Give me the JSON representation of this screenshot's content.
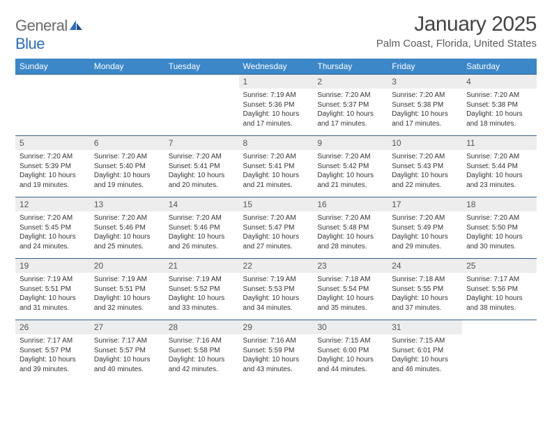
{
  "logo": {
    "text1": "General",
    "text2": "Blue"
  },
  "title": "January 2025",
  "location": "Palm Coast, Florida, United States",
  "colors": {
    "header_bg": "#3b87c8",
    "header_text": "#ffffff",
    "row_border": "#2f5f8a",
    "daynum_bg": "#ededed",
    "logo_gray": "#6a6a6a",
    "logo_blue": "#2a6cbf"
  },
  "weekdays": [
    "Sunday",
    "Monday",
    "Tuesday",
    "Wednesday",
    "Thursday",
    "Friday",
    "Saturday"
  ],
  "weeks": [
    [
      null,
      null,
      null,
      {
        "n": "1",
        "sr": "7:19 AM",
        "ss": "5:36 PM",
        "dl": "10 hours and 17 minutes."
      },
      {
        "n": "2",
        "sr": "7:20 AM",
        "ss": "5:37 PM",
        "dl": "10 hours and 17 minutes."
      },
      {
        "n": "3",
        "sr": "7:20 AM",
        "ss": "5:38 PM",
        "dl": "10 hours and 17 minutes."
      },
      {
        "n": "4",
        "sr": "7:20 AM",
        "ss": "5:38 PM",
        "dl": "10 hours and 18 minutes."
      }
    ],
    [
      {
        "n": "5",
        "sr": "7:20 AM",
        "ss": "5:39 PM",
        "dl": "10 hours and 19 minutes."
      },
      {
        "n": "6",
        "sr": "7:20 AM",
        "ss": "5:40 PM",
        "dl": "10 hours and 19 minutes."
      },
      {
        "n": "7",
        "sr": "7:20 AM",
        "ss": "5:41 PM",
        "dl": "10 hours and 20 minutes."
      },
      {
        "n": "8",
        "sr": "7:20 AM",
        "ss": "5:41 PM",
        "dl": "10 hours and 21 minutes."
      },
      {
        "n": "9",
        "sr": "7:20 AM",
        "ss": "5:42 PM",
        "dl": "10 hours and 21 minutes."
      },
      {
        "n": "10",
        "sr": "7:20 AM",
        "ss": "5:43 PM",
        "dl": "10 hours and 22 minutes."
      },
      {
        "n": "11",
        "sr": "7:20 AM",
        "ss": "5:44 PM",
        "dl": "10 hours and 23 minutes."
      }
    ],
    [
      {
        "n": "12",
        "sr": "7:20 AM",
        "ss": "5:45 PM",
        "dl": "10 hours and 24 minutes."
      },
      {
        "n": "13",
        "sr": "7:20 AM",
        "ss": "5:46 PM",
        "dl": "10 hours and 25 minutes."
      },
      {
        "n": "14",
        "sr": "7:20 AM",
        "ss": "5:46 PM",
        "dl": "10 hours and 26 minutes."
      },
      {
        "n": "15",
        "sr": "7:20 AM",
        "ss": "5:47 PM",
        "dl": "10 hours and 27 minutes."
      },
      {
        "n": "16",
        "sr": "7:20 AM",
        "ss": "5:48 PM",
        "dl": "10 hours and 28 minutes."
      },
      {
        "n": "17",
        "sr": "7:20 AM",
        "ss": "5:49 PM",
        "dl": "10 hours and 29 minutes."
      },
      {
        "n": "18",
        "sr": "7:20 AM",
        "ss": "5:50 PM",
        "dl": "10 hours and 30 minutes."
      }
    ],
    [
      {
        "n": "19",
        "sr": "7:19 AM",
        "ss": "5:51 PM",
        "dl": "10 hours and 31 minutes."
      },
      {
        "n": "20",
        "sr": "7:19 AM",
        "ss": "5:51 PM",
        "dl": "10 hours and 32 minutes."
      },
      {
        "n": "21",
        "sr": "7:19 AM",
        "ss": "5:52 PM",
        "dl": "10 hours and 33 minutes."
      },
      {
        "n": "22",
        "sr": "7:19 AM",
        "ss": "5:53 PM",
        "dl": "10 hours and 34 minutes."
      },
      {
        "n": "23",
        "sr": "7:18 AM",
        "ss": "5:54 PM",
        "dl": "10 hours and 35 minutes."
      },
      {
        "n": "24",
        "sr": "7:18 AM",
        "ss": "5:55 PM",
        "dl": "10 hours and 37 minutes."
      },
      {
        "n": "25",
        "sr": "7:17 AM",
        "ss": "5:56 PM",
        "dl": "10 hours and 38 minutes."
      }
    ],
    [
      {
        "n": "26",
        "sr": "7:17 AM",
        "ss": "5:57 PM",
        "dl": "10 hours and 39 minutes."
      },
      {
        "n": "27",
        "sr": "7:17 AM",
        "ss": "5:57 PM",
        "dl": "10 hours and 40 minutes."
      },
      {
        "n": "28",
        "sr": "7:16 AM",
        "ss": "5:58 PM",
        "dl": "10 hours and 42 minutes."
      },
      {
        "n": "29",
        "sr": "7:16 AM",
        "ss": "5:59 PM",
        "dl": "10 hours and 43 minutes."
      },
      {
        "n": "30",
        "sr": "7:15 AM",
        "ss": "6:00 PM",
        "dl": "10 hours and 44 minutes."
      },
      {
        "n": "31",
        "sr": "7:15 AM",
        "ss": "6:01 PM",
        "dl": "10 hours and 46 minutes."
      },
      null
    ]
  ],
  "labels": {
    "sunrise": "Sunrise: ",
    "sunset": "Sunset: ",
    "daylight": "Daylight: "
  }
}
